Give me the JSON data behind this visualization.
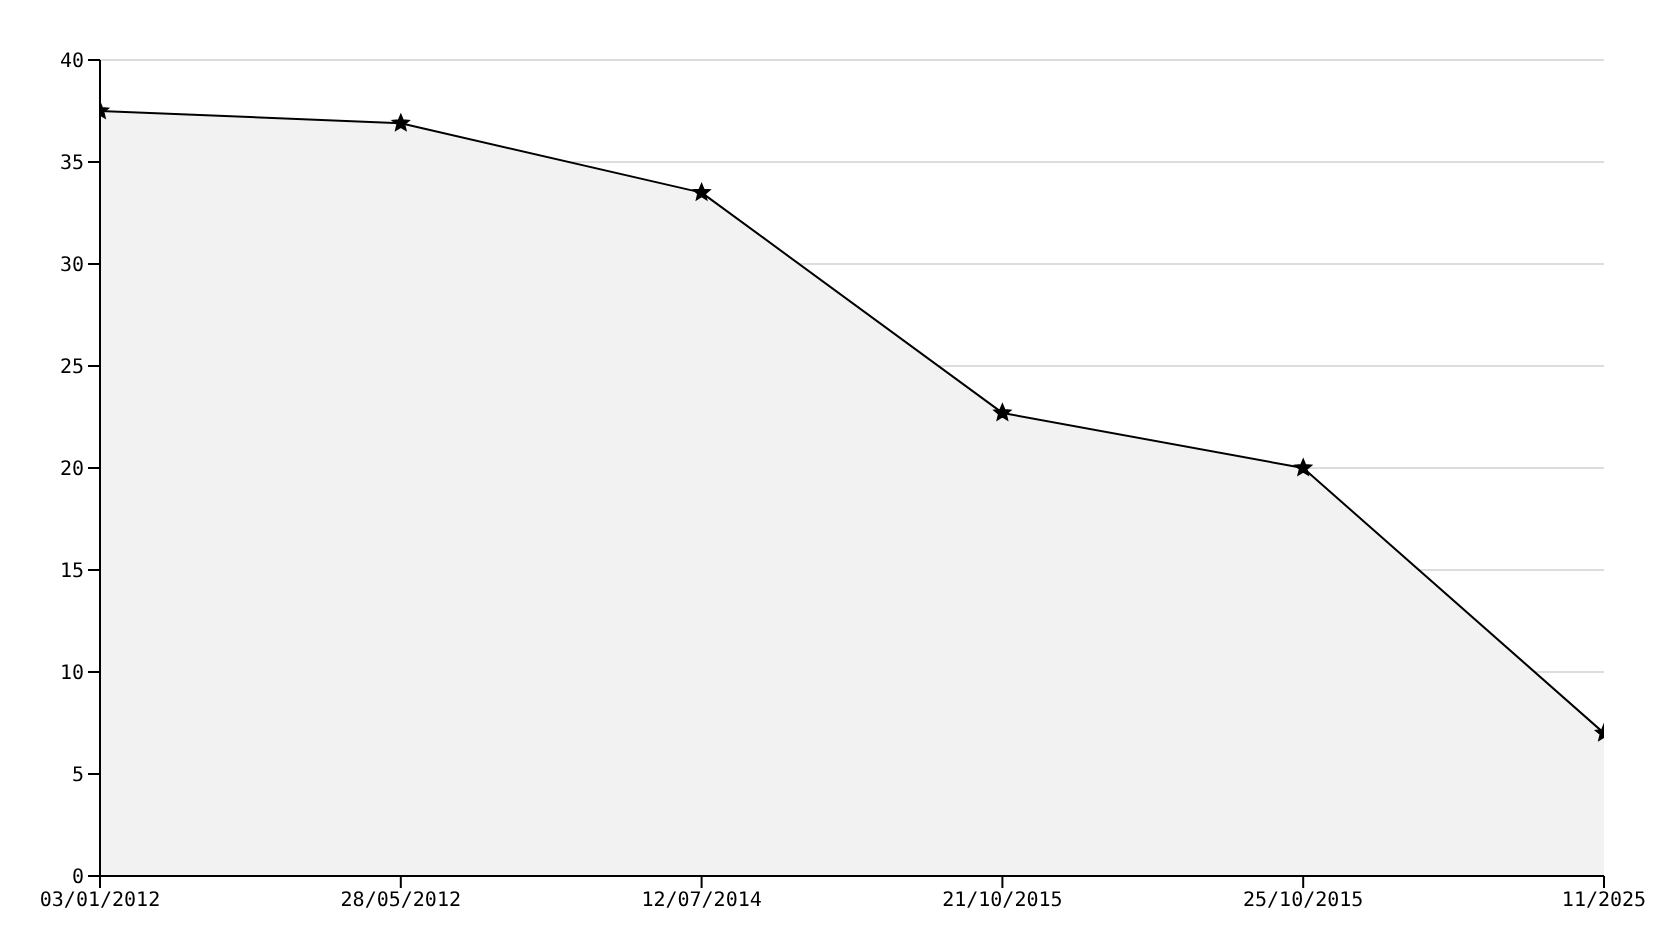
{
  "chart_data": {
    "type": "area",
    "categories": [
      "03/01/2012",
      "28/05/2012",
      "12/07/2014",
      "21/10/2015",
      "25/10/2015",
      "11/2025"
    ],
    "series": [
      {
        "color": "#000000",
        "values": [
          37.5,
          36.9,
          33.5,
          22.7,
          20.0,
          7.0
        ]
      }
    ],
    "ylim": [
      0,
      40
    ],
    "yticks": [
      0,
      5,
      10,
      15,
      20,
      25,
      30,
      35,
      40
    ],
    "grid": "y",
    "marker": "star",
    "line_style": "solid"
  }
}
